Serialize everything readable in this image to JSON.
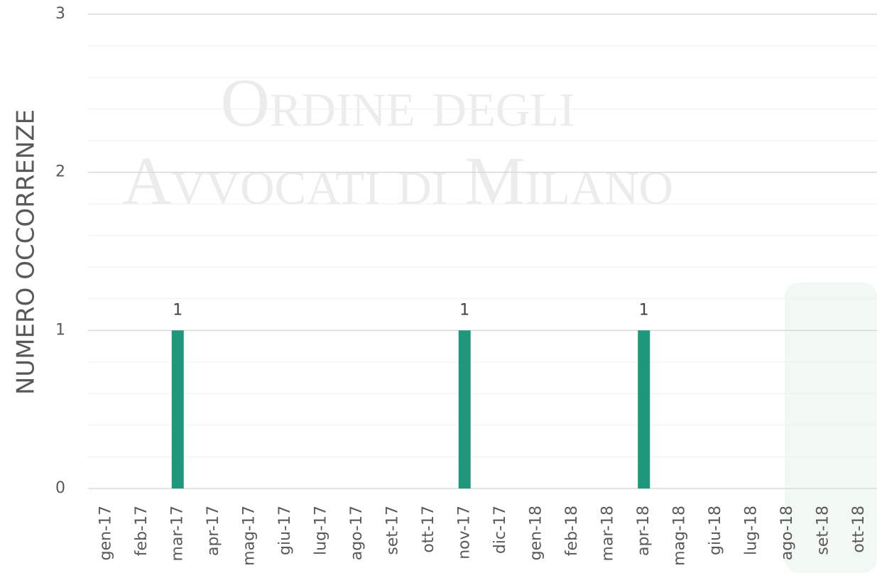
{
  "chart_data": {
    "type": "bar",
    "watermark": [
      "Ordine degli",
      "Avvocati di Milano"
    ],
    "ylabel": "NUMERO OCCORRENZE",
    "categories": [
      "gen-17",
      "feb-17",
      "mar-17",
      "apr-17",
      "mag-17",
      "giu-17",
      "lug-17",
      "ago-17",
      "set-17",
      "ott-17",
      "nov-17",
      "dic-17",
      "gen-18",
      "feb-18",
      "mar-18",
      "apr-18",
      "mag-18",
      "giu-18",
      "lug-18",
      "ago-18",
      "set-18",
      "ott-18"
    ],
    "values": [
      0,
      0,
      1,
      0,
      0,
      0,
      0,
      0,
      0,
      0,
      1,
      0,
      0,
      0,
      0,
      1,
      0,
      0,
      0,
      0,
      0,
      0
    ],
    "color": "#1e977a",
    "ylim": [
      0,
      3
    ],
    "yticks": [
      0,
      1,
      2,
      3
    ],
    "minor_yticks": [
      0.2,
      0.4,
      0.6,
      0.8,
      1.2,
      1.4,
      1.6,
      1.8,
      2.2,
      2.4,
      2.6,
      2.8
    ],
    "grid": true
  }
}
